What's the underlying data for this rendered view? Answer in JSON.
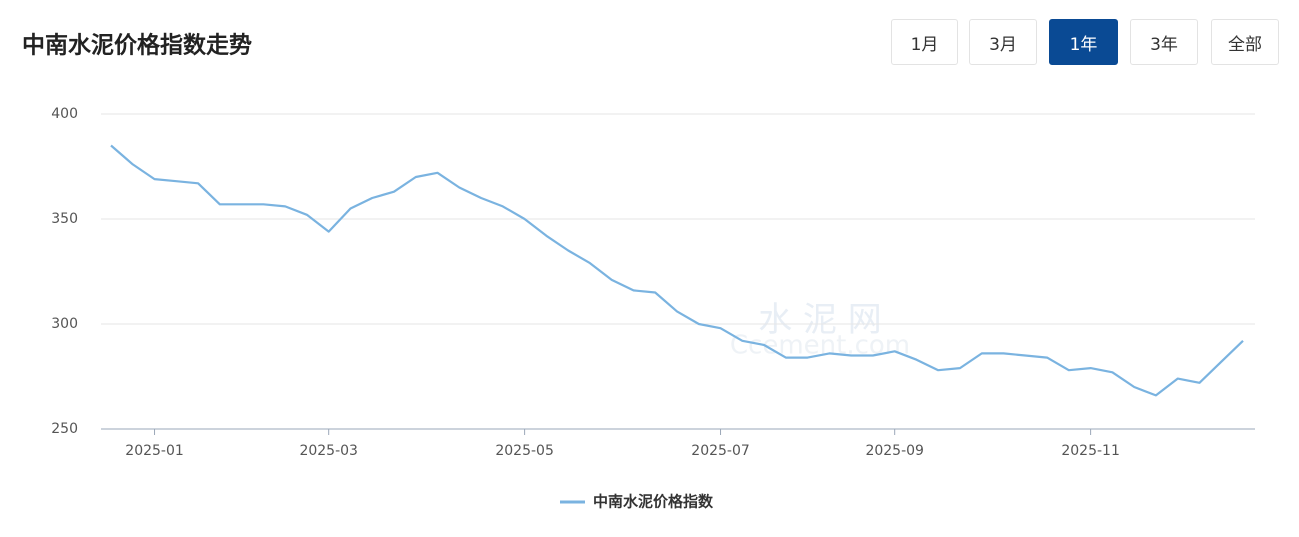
{
  "buttons": [
    {
      "label": "1月",
      "active": false
    },
    {
      "label": "3月",
      "active": false
    },
    {
      "label": "1年",
      "active": true
    },
    {
      "label": "3年",
      "active": false
    },
    {
      "label": "全部",
      "active": false
    }
  ],
  "watermark": {
    "text": "水 泥 网",
    "sub": "Ccement.com"
  },
  "chart_data": {
    "type": "line",
    "title": "中南水泥价格指数走势",
    "categories": [
      null,
      null,
      "2025-01",
      null,
      null,
      null,
      null,
      null,
      null,
      null,
      "2025-03",
      null,
      null,
      null,
      null,
      null,
      null,
      null,
      null,
      "2025-05",
      null,
      null,
      null,
      null,
      null,
      null,
      null,
      null,
      "2025-07",
      null,
      null,
      null,
      null,
      null,
      null,
      null,
      "2025-09",
      null,
      null,
      null,
      null,
      null,
      null,
      null,
      null,
      "2025-11",
      null,
      null,
      null,
      null,
      null,
      null,
      null
    ],
    "series": [
      {
        "name": "中南水泥价格指数",
        "color": "#7ab3e0",
        "values": [
          385,
          376,
          369,
          368,
          367,
          357,
          357,
          357,
          356,
          352,
          344,
          355,
          360,
          363,
          370,
          372,
          365,
          360,
          356,
          350,
          342,
          335,
          329,
          321,
          316,
          315,
          306,
          300,
          298,
          292,
          290,
          284,
          284,
          286,
          285,
          285,
          287,
          283,
          278,
          279,
          286,
          286,
          285,
          284,
          278,
          279,
          277,
          270,
          266,
          274,
          272,
          282,
          292
        ]
      }
    ],
    "ylim": [
      250,
      400
    ],
    "yticks": [
      250,
      300,
      350,
      400
    ],
    "grid": true,
    "legend": "bottom"
  }
}
